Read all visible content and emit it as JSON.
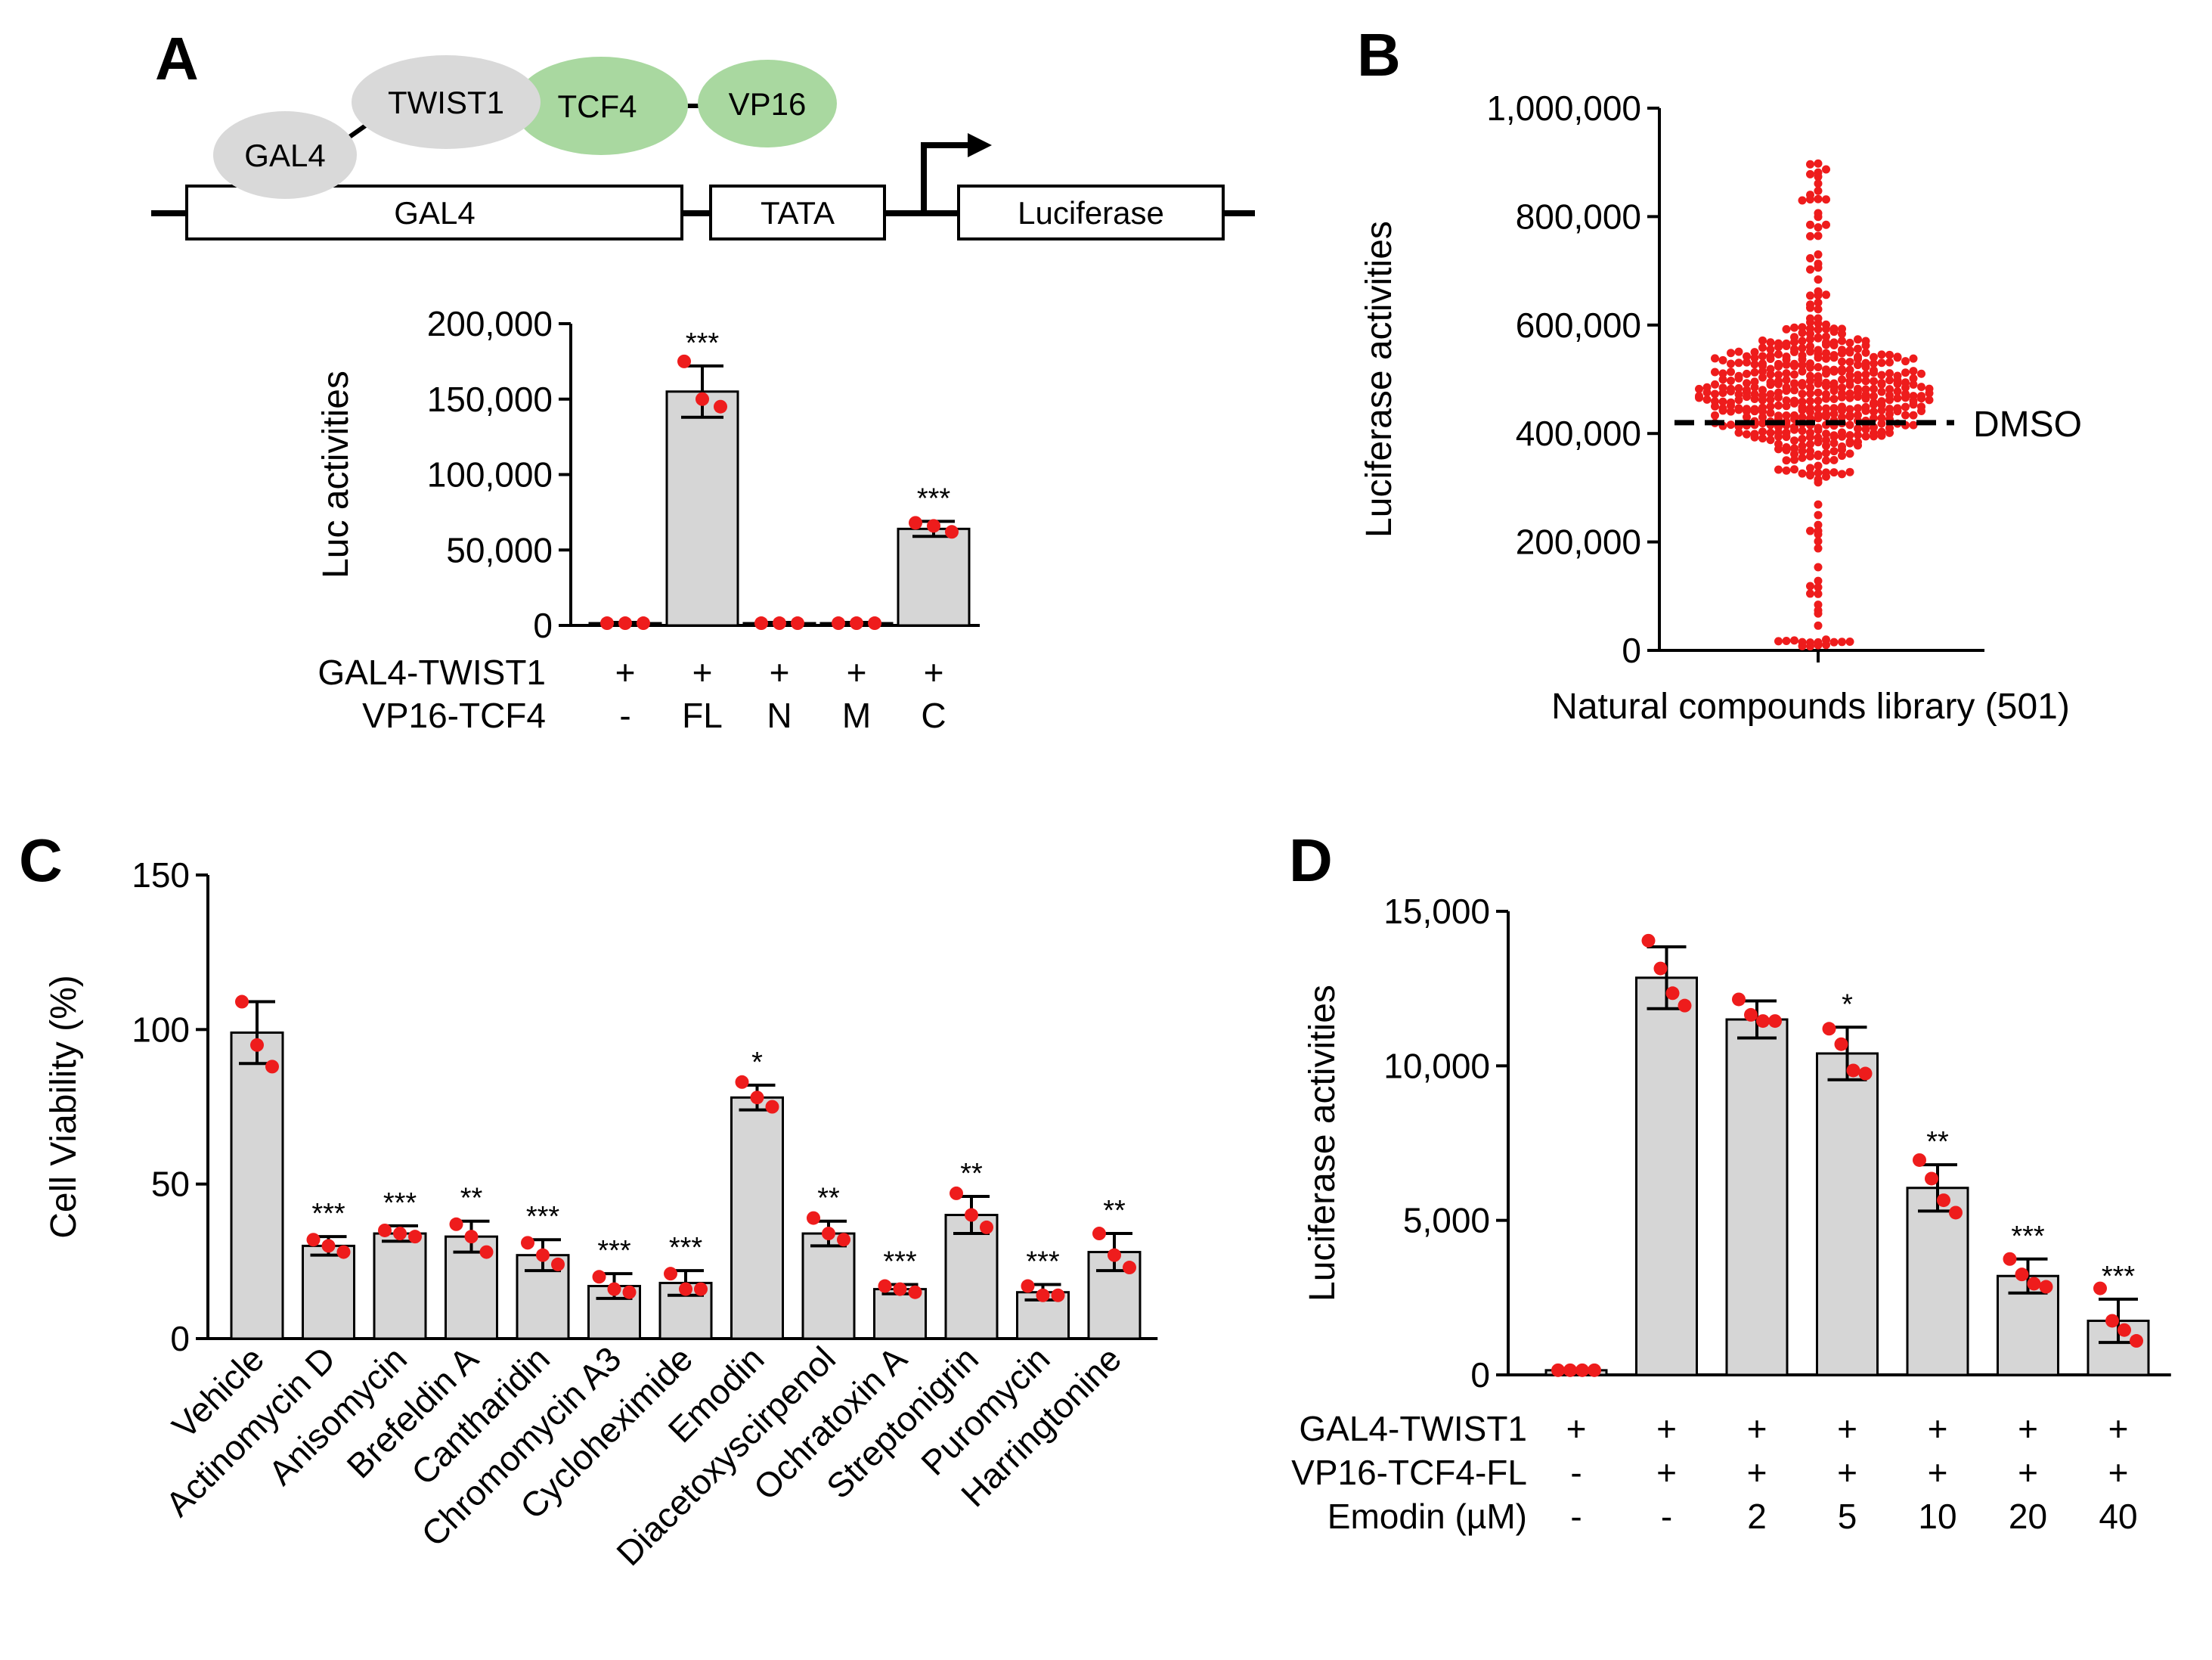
{
  "panel_letters": [
    "A",
    "B",
    "C",
    "D"
  ],
  "diagram": {
    "proteins": [
      {
        "name": "GAL4",
        "color": "#d9d9d9"
      },
      {
        "name": "TWIST1",
        "color": "#d9d9d9"
      },
      {
        "name": "TCF4",
        "color": "#a9d8a0"
      },
      {
        "name": "VP16",
        "color": "#a9d8a0"
      }
    ],
    "boxes": [
      "GAL4",
      "TATA",
      "Luciferase"
    ]
  },
  "chart_data": [
    {
      "panel": "A",
      "type": "bar",
      "ylabel": "Luc activities",
      "ylim": [
        0,
        200000
      ],
      "yticks": [
        0,
        50000,
        100000,
        150000,
        200000
      ],
      "ytick_labels": [
        "0",
        "50,000",
        "100,000",
        "150,000",
        "200,000"
      ],
      "values": [
        1500,
        155000,
        1500,
        1500,
        64000
      ],
      "errors": [
        500,
        17000,
        500,
        500,
        5000
      ],
      "points": [
        [
          1500,
          1500,
          1500
        ],
        [
          175000,
          150000,
          145000
        ],
        [
          1500,
          1500,
          1500
        ],
        [
          1500,
          1500,
          1500
        ],
        [
          68000,
          66000,
          62000
        ]
      ],
      "stars": [
        "",
        "***",
        "",
        "",
        "***"
      ],
      "conditions": [
        {
          "label": "GAL4-TWIST1",
          "values": [
            "+",
            "+",
            "+",
            "+",
            "+"
          ]
        },
        {
          "label": "VP16-TCF4",
          "values": [
            "-",
            "FL",
            "N",
            "M",
            "C"
          ]
        }
      ]
    },
    {
      "panel": "B",
      "type": "scatter",
      "ylabel": "Luciferase activities",
      "xlabel": "Natural compounds library (501)",
      "ylim": [
        0,
        1000000
      ],
      "yticks": [
        0,
        200000,
        400000,
        600000,
        800000,
        1000000
      ],
      "ytick_labels": [
        "0",
        "200,000",
        "400,000",
        "600,000",
        "800,000",
        "1,000,000"
      ],
      "n_points": 501,
      "median": 470000,
      "reference_line": {
        "label": "DMSO",
        "value": 420000
      }
    },
    {
      "panel": "C",
      "type": "bar",
      "ylabel": "Cell Viability (%)",
      "ylim": [
        0,
        150
      ],
      "yticks": [
        0,
        50,
        100,
        150
      ],
      "ytick_labels": [
        "0",
        "50",
        "100",
        "150"
      ],
      "categories": [
        "Vehicle",
        "Actinomycin D",
        "Anisomycin",
        "Brefeldin A",
        "Cantharidin",
        "Chromomycin A3",
        "Cycloheximide",
        "Emodin",
        "Diacetoxyscirpenol",
        "Ochratoxin A",
        "Streptonigrin",
        "Puromycin",
        "Harringtonine"
      ],
      "values": [
        99,
        30,
        34,
        33,
        27,
        17,
        18,
        78,
        34,
        16,
        40,
        15,
        28
      ],
      "errors": [
        10,
        3,
        2.5,
        5,
        5,
        4,
        4,
        4,
        4,
        1.5,
        6,
        2.5,
        6
      ],
      "points": [
        [
          109,
          95,
          88
        ],
        [
          32,
          30,
          28
        ],
        [
          35,
          34,
          33
        ],
        [
          37,
          33,
          28
        ],
        [
          31,
          27,
          24
        ],
        [
          20,
          16,
          15
        ],
        [
          21,
          16,
          16
        ],
        [
          83,
          78,
          75
        ],
        [
          39,
          34,
          32
        ],
        [
          17,
          16,
          15
        ],
        [
          47,
          40,
          36
        ],
        [
          17,
          14,
          14
        ],
        [
          34,
          27,
          23
        ]
      ],
      "stars": [
        "",
        "***",
        "***",
        "**",
        "***",
        "***",
        "***",
        "*",
        "**",
        "***",
        "**",
        "***",
        "**"
      ]
    },
    {
      "panel": "D",
      "type": "bar",
      "ylabel": "Luciferase activities",
      "ylim": [
        0,
        15000
      ],
      "yticks": [
        0,
        5000,
        10000,
        15000
      ],
      "ytick_labels": [
        "0",
        "5,000",
        "10,000",
        "15,000"
      ],
      "values": [
        150,
        12850,
        11500,
        10400,
        6050,
        3200,
        1750
      ],
      "errors": [
        0,
        1000,
        600,
        850,
        750,
        550,
        700
      ],
      "points": [
        [
          150,
          150,
          150,
          150
        ],
        [
          14050,
          13150,
          12350,
          11950
        ],
        [
          12150,
          11650,
          11450,
          11450
        ],
        [
          11200,
          10700,
          9850,
          9750
        ],
        [
          6950,
          6350,
          5650,
          5250
        ],
        [
          3750,
          3250,
          2950,
          2850
        ],
        [
          2800,
          1750,
          1450,
          1100
        ]
      ],
      "stars": [
        "",
        "",
        "",
        "*",
        "**",
        "***",
        "***"
      ],
      "conditions": [
        {
          "label": "GAL4-TWIST1",
          "values": [
            "+",
            "+",
            "+",
            "+",
            "+",
            "+",
            "+"
          ]
        },
        {
          "label": "VP16-TCF4-FL",
          "values": [
            "-",
            "+",
            "+",
            "+",
            "+",
            "+",
            "+"
          ]
        },
        {
          "label": "Emodin (µM)",
          "values": [
            "-",
            "-",
            "2",
            "5",
            "10",
            "20",
            "40"
          ]
        }
      ]
    }
  ]
}
